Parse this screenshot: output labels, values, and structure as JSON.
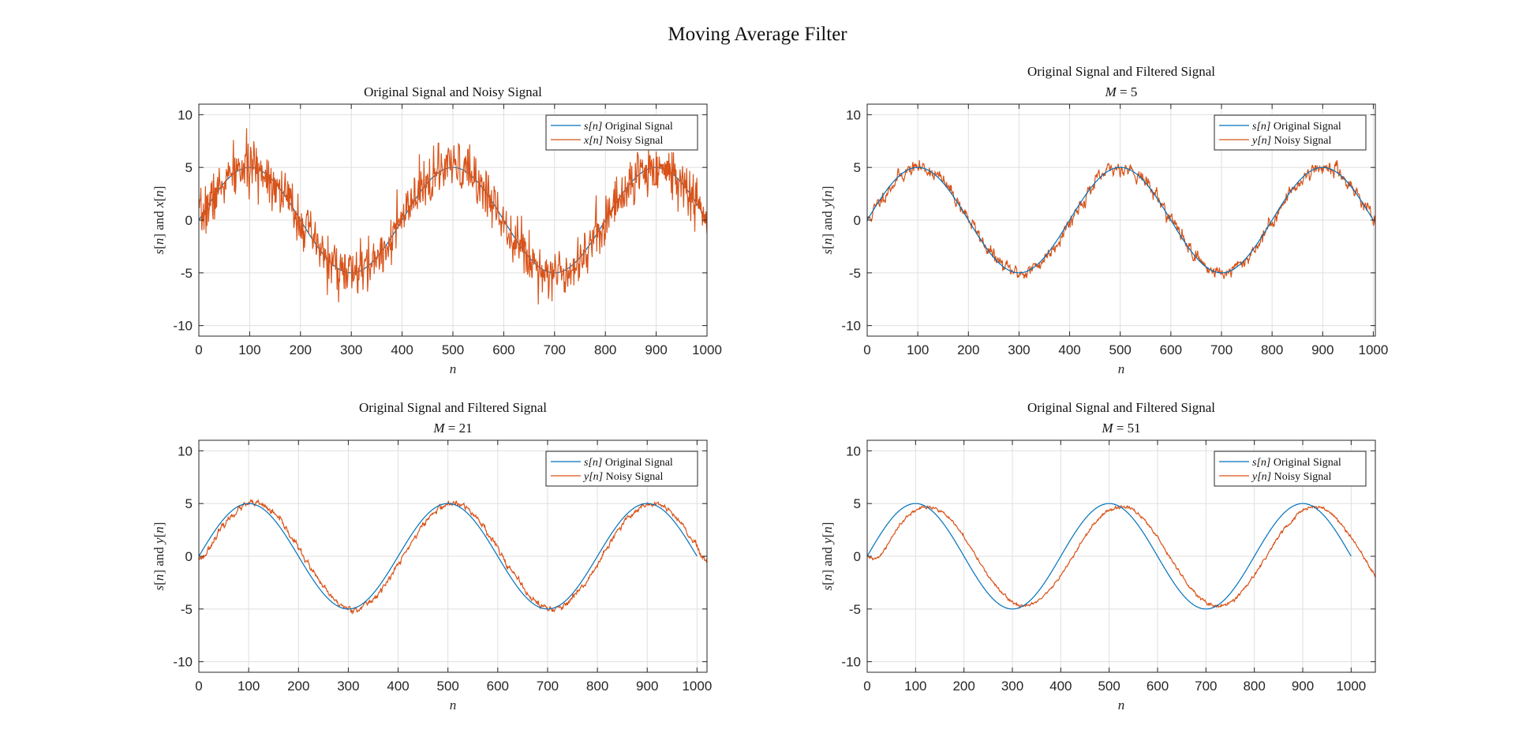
{
  "figure": {
    "title": "Moving Average Filter"
  },
  "colors": {
    "original": "#0072BD",
    "filtered": "#D95319",
    "grid": "#DFDFDF",
    "axes": "#262626"
  },
  "chart_data": [
    {
      "type": "line",
      "title_lines": [
        "Original Signal and Noisy Signal"
      ],
      "xlabel": "n",
      "ylabel": "s[n] and x[n]",
      "xlim": [
        0,
        1000
      ],
      "ylim": [
        -11,
        11
      ],
      "xticks": [
        0,
        100,
        200,
        300,
        400,
        500,
        600,
        700,
        800,
        900,
        1000
      ],
      "yticks": [
        -10,
        -5,
        0,
        5,
        10
      ],
      "grid": true,
      "legend_location": "top-right",
      "legend": [
        {
          "var": "s[n]",
          "text": " Original Signal"
        },
        {
          "var": "x[n]",
          "text": " Noisy Signal"
        }
      ],
      "series": [
        {
          "kind": "sine",
          "amplitude": 5,
          "period": 400,
          "n_start": 0,
          "n_end": 1000,
          "delay": 0,
          "ripple": 0
        },
        {
          "kind": "noisy",
          "amplitude": 5,
          "period": 400,
          "n_start": 0,
          "n_end": 1000,
          "delay": 0,
          "noise_std": 1.2,
          "seed": 7
        }
      ]
    },
    {
      "type": "line",
      "title_lines": [
        "Original Signal and Filtered Signal",
        "M = 5"
      ],
      "xlabel": "n",
      "ylabel": "s[n] and y[n]",
      "xlim": [
        0,
        1004
      ],
      "ylim": [
        -11,
        11
      ],
      "xticks": [
        0,
        100,
        200,
        300,
        400,
        500,
        600,
        700,
        800,
        900,
        1000
      ],
      "yticks": [
        -10,
        -5,
        0,
        5,
        10
      ],
      "grid": true,
      "legend_location": "top-right",
      "legend": [
        {
          "var": "s[n]",
          "text": " Original Signal"
        },
        {
          "var": "y[n]",
          "text": " Noisy Signal"
        }
      ],
      "series": [
        {
          "kind": "sine",
          "amplitude": 5,
          "period": 400,
          "n_start": 0,
          "n_end": 1000,
          "delay": 0,
          "ripple": 0
        },
        {
          "kind": "filtered",
          "amplitude": 5,
          "period": 400,
          "n_start": 0,
          "n_end": 1004,
          "delay": 2,
          "ripple": 0.35,
          "seed": 11
        }
      ]
    },
    {
      "type": "line",
      "title_lines": [
        "Original Signal and Filtered Signal",
        "M = 21"
      ],
      "xlabel": "n",
      "ylabel": "s[n] and y[n]",
      "xlim": [
        0,
        1020
      ],
      "ylim": [
        -11,
        11
      ],
      "xticks": [
        0,
        100,
        200,
        300,
        400,
        500,
        600,
        700,
        800,
        900,
        1000
      ],
      "yticks": [
        -10,
        -5,
        0,
        5,
        10
      ],
      "grid": true,
      "legend_location": "top-right",
      "legend": [
        {
          "var": "s[n]",
          "text": " Original Signal"
        },
        {
          "var": "y[n]",
          "text": " Noisy Signal"
        }
      ],
      "series": [
        {
          "kind": "sine",
          "amplitude": 5,
          "period": 400,
          "n_start": 0,
          "n_end": 1000,
          "delay": 0,
          "ripple": 0
        },
        {
          "kind": "filtered",
          "amplitude": 5,
          "period": 400,
          "n_start": 0,
          "n_end": 1020,
          "delay": 10,
          "ripple": 0.15,
          "seed": 23
        }
      ]
    },
    {
      "type": "line",
      "title_lines": [
        "Original Signal and Filtered Signal",
        "M = 51"
      ],
      "xlabel": "n",
      "ylabel": "s[n] and y[n]",
      "xlim": [
        0,
        1050
      ],
      "ylim": [
        -11,
        11
      ],
      "xticks": [
        0,
        100,
        200,
        300,
        400,
        500,
        600,
        700,
        800,
        900,
        1000
      ],
      "yticks": [
        -10,
        -5,
        0,
        5,
        10
      ],
      "grid": true,
      "legend_location": "top-right",
      "legend": [
        {
          "var": "s[n]",
          "text": " Original Signal"
        },
        {
          "var": "y[n]",
          "text": " Noisy Signal"
        }
      ],
      "series": [
        {
          "kind": "sine",
          "amplitude": 5,
          "period": 400,
          "n_start": 0,
          "n_end": 1000,
          "delay": 0,
          "ripple": 0
        },
        {
          "kind": "filtered",
          "amplitude": 4.7,
          "period": 400,
          "n_start": 0,
          "n_end": 1050,
          "delay": 25,
          "ripple": 0.08,
          "seed": 31
        }
      ]
    }
  ]
}
